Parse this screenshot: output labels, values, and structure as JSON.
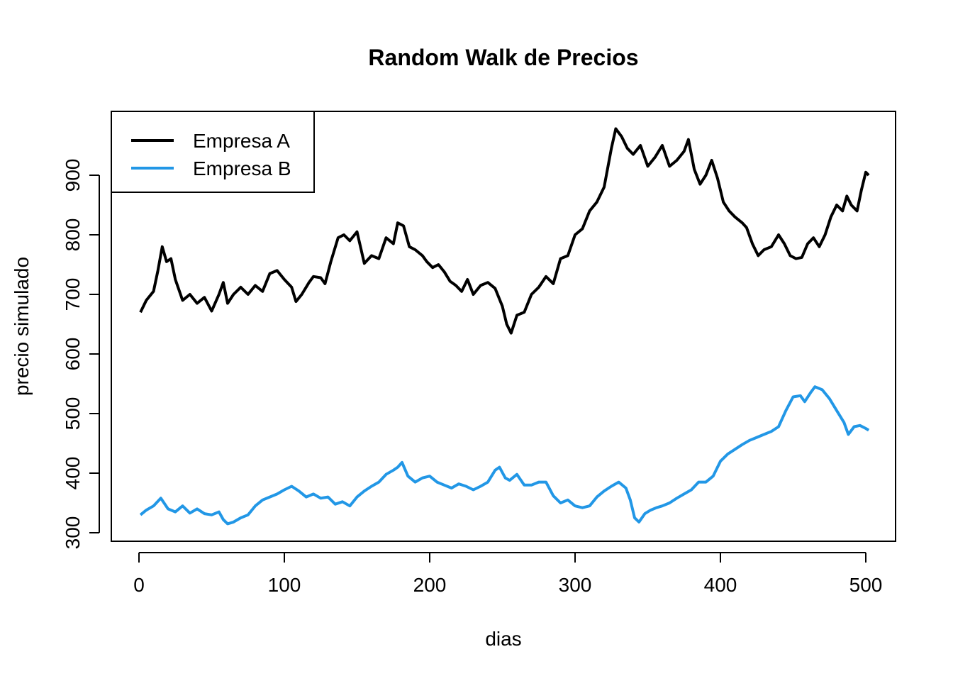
{
  "chart_data": {
    "type": "line",
    "title": "Random Walk de Precios",
    "xlabel": "dias",
    "ylabel": "precio simulado",
    "xlim": [
      0,
      500
    ],
    "ylim": [
      300,
      990
    ],
    "x_ticks": [
      0,
      100,
      200,
      300,
      400,
      500
    ],
    "y_ticks": [
      300,
      400,
      500,
      600,
      700,
      800,
      900
    ],
    "grid": false,
    "legend_position": "top-left",
    "series": [
      {
        "name": "Empresa A",
        "color": "#000000",
        "points": [
          [
            1,
            670
          ],
          [
            5,
            690
          ],
          [
            10,
            705
          ],
          [
            13,
            740
          ],
          [
            16,
            780
          ],
          [
            19,
            755
          ],
          [
            22,
            760
          ],
          [
            25,
            725
          ],
          [
            30,
            690
          ],
          [
            35,
            700
          ],
          [
            40,
            685
          ],
          [
            45,
            695
          ],
          [
            50,
            672
          ],
          [
            55,
            700
          ],
          [
            58,
            720
          ],
          [
            61,
            685
          ],
          [
            65,
            700
          ],
          [
            70,
            712
          ],
          [
            75,
            700
          ],
          [
            80,
            715
          ],
          [
            85,
            705
          ],
          [
            90,
            735
          ],
          [
            95,
            740
          ],
          [
            100,
            725
          ],
          [
            105,
            712
          ],
          [
            108,
            688
          ],
          [
            112,
            700
          ],
          [
            117,
            720
          ],
          [
            120,
            730
          ],
          [
            125,
            728
          ],
          [
            128,
            718
          ],
          [
            132,
            755
          ],
          [
            137,
            795
          ],
          [
            141,
            800
          ],
          [
            145,
            790
          ],
          [
            150,
            805
          ],
          [
            155,
            752
          ],
          [
            160,
            765
          ],
          [
            165,
            760
          ],
          [
            170,
            795
          ],
          [
            175,
            785
          ],
          [
            178,
            820
          ],
          [
            182,
            815
          ],
          [
            186,
            780
          ],
          [
            190,
            775
          ],
          [
            195,
            765
          ],
          [
            198,
            755
          ],
          [
            202,
            745
          ],
          [
            206,
            750
          ],
          [
            210,
            738
          ],
          [
            214,
            722
          ],
          [
            218,
            715
          ],
          [
            222,
            705
          ],
          [
            226,
            725
          ],
          [
            230,
            700
          ],
          [
            235,
            715
          ],
          [
            240,
            720
          ],
          [
            245,
            710
          ],
          [
            250,
            680
          ],
          [
            253,
            650
          ],
          [
            256,
            635
          ],
          [
            260,
            665
          ],
          [
            265,
            670
          ],
          [
            270,
            700
          ],
          [
            275,
            712
          ],
          [
            280,
            730
          ],
          [
            285,
            718
          ],
          [
            290,
            760
          ],
          [
            295,
            765
          ],
          [
            300,
            800
          ],
          [
            305,
            810
          ],
          [
            310,
            840
          ],
          [
            315,
            855
          ],
          [
            320,
            880
          ],
          [
            325,
            945
          ],
          [
            328,
            978
          ],
          [
            332,
            965
          ],
          [
            336,
            945
          ],
          [
            340,
            935
          ],
          [
            345,
            950
          ],
          [
            350,
            915
          ],
          [
            355,
            930
          ],
          [
            360,
            950
          ],
          [
            365,
            915
          ],
          [
            370,
            925
          ],
          [
            375,
            940
          ],
          [
            378,
            960
          ],
          [
            382,
            910
          ],
          [
            386,
            885
          ],
          [
            390,
            900
          ],
          [
            394,
            925
          ],
          [
            398,
            895
          ],
          [
            402,
            855
          ],
          [
            406,
            840
          ],
          [
            410,
            830
          ],
          [
            415,
            820
          ],
          [
            418,
            812
          ],
          [
            422,
            785
          ],
          [
            426,
            765
          ],
          [
            430,
            775
          ],
          [
            435,
            780
          ],
          [
            440,
            800
          ],
          [
            444,
            785
          ],
          [
            448,
            765
          ],
          [
            452,
            760
          ],
          [
            456,
            762
          ],
          [
            460,
            785
          ],
          [
            464,
            795
          ],
          [
            468,
            780
          ],
          [
            472,
            800
          ],
          [
            476,
            830
          ],
          [
            480,
            850
          ],
          [
            484,
            840
          ],
          [
            487,
            865
          ],
          [
            490,
            850
          ],
          [
            494,
            840
          ],
          [
            497,
            875
          ],
          [
            500,
            905
          ],
          [
            502,
            900
          ]
        ]
      },
      {
        "name": "Empresa B",
        "color": "#2297e6",
        "points": [
          [
            1,
            330
          ],
          [
            5,
            338
          ],
          [
            10,
            345
          ],
          [
            15,
            358
          ],
          [
            20,
            340
          ],
          [
            25,
            335
          ],
          [
            30,
            345
          ],
          [
            35,
            333
          ],
          [
            40,
            340
          ],
          [
            45,
            332
          ],
          [
            50,
            330
          ],
          [
            55,
            335
          ],
          [
            58,
            322
          ],
          [
            61,
            315
          ],
          [
            65,
            318
          ],
          [
            70,
            325
          ],
          [
            75,
            330
          ],
          [
            80,
            345
          ],
          [
            85,
            355
          ],
          [
            90,
            360
          ],
          [
            95,
            365
          ],
          [
            100,
            372
          ],
          [
            105,
            378
          ],
          [
            110,
            370
          ],
          [
            115,
            360
          ],
          [
            120,
            365
          ],
          [
            125,
            358
          ],
          [
            130,
            360
          ],
          [
            135,
            348
          ],
          [
            140,
            352
          ],
          [
            145,
            345
          ],
          [
            150,
            360
          ],
          [
            155,
            370
          ],
          [
            160,
            378
          ],
          [
            165,
            385
          ],
          [
            170,
            398
          ],
          [
            175,
            405
          ],
          [
            178,
            410
          ],
          [
            181,
            418
          ],
          [
            185,
            395
          ],
          [
            190,
            385
          ],
          [
            195,
            392
          ],
          [
            200,
            395
          ],
          [
            205,
            385
          ],
          [
            210,
            380
          ],
          [
            215,
            375
          ],
          [
            220,
            382
          ],
          [
            225,
            378
          ],
          [
            230,
            372
          ],
          [
            235,
            378
          ],
          [
            240,
            385
          ],
          [
            245,
            405
          ],
          [
            248,
            410
          ],
          [
            252,
            392
          ],
          [
            255,
            388
          ],
          [
            260,
            398
          ],
          [
            265,
            380
          ],
          [
            270,
            380
          ],
          [
            275,
            385
          ],
          [
            280,
            385
          ],
          [
            285,
            362
          ],
          [
            290,
            350
          ],
          [
            295,
            355
          ],
          [
            300,
            345
          ],
          [
            305,
            342
          ],
          [
            310,
            345
          ],
          [
            315,
            360
          ],
          [
            320,
            370
          ],
          [
            325,
            378
          ],
          [
            330,
            385
          ],
          [
            335,
            375
          ],
          [
            338,
            355
          ],
          [
            341,
            325
          ],
          [
            344,
            318
          ],
          [
            348,
            332
          ],
          [
            352,
            338
          ],
          [
            356,
            342
          ],
          [
            360,
            345
          ],
          [
            365,
            350
          ],
          [
            370,
            358
          ],
          [
            375,
            365
          ],
          [
            380,
            372
          ],
          [
            385,
            385
          ],
          [
            390,
            385
          ],
          [
            395,
            395
          ],
          [
            400,
            420
          ],
          [
            405,
            432
          ],
          [
            410,
            440
          ],
          [
            415,
            448
          ],
          [
            420,
            455
          ],
          [
            425,
            460
          ],
          [
            430,
            465
          ],
          [
            435,
            470
          ],
          [
            440,
            478
          ],
          [
            445,
            505
          ],
          [
            450,
            528
          ],
          [
            455,
            530
          ],
          [
            458,
            520
          ],
          [
            462,
            535
          ],
          [
            465,
            545
          ],
          [
            470,
            540
          ],
          [
            475,
            525
          ],
          [
            480,
            505
          ],
          [
            485,
            485
          ],
          [
            488,
            465
          ],
          [
            492,
            478
          ],
          [
            496,
            480
          ],
          [
            500,
            475
          ],
          [
            502,
            472
          ]
        ]
      }
    ]
  }
}
